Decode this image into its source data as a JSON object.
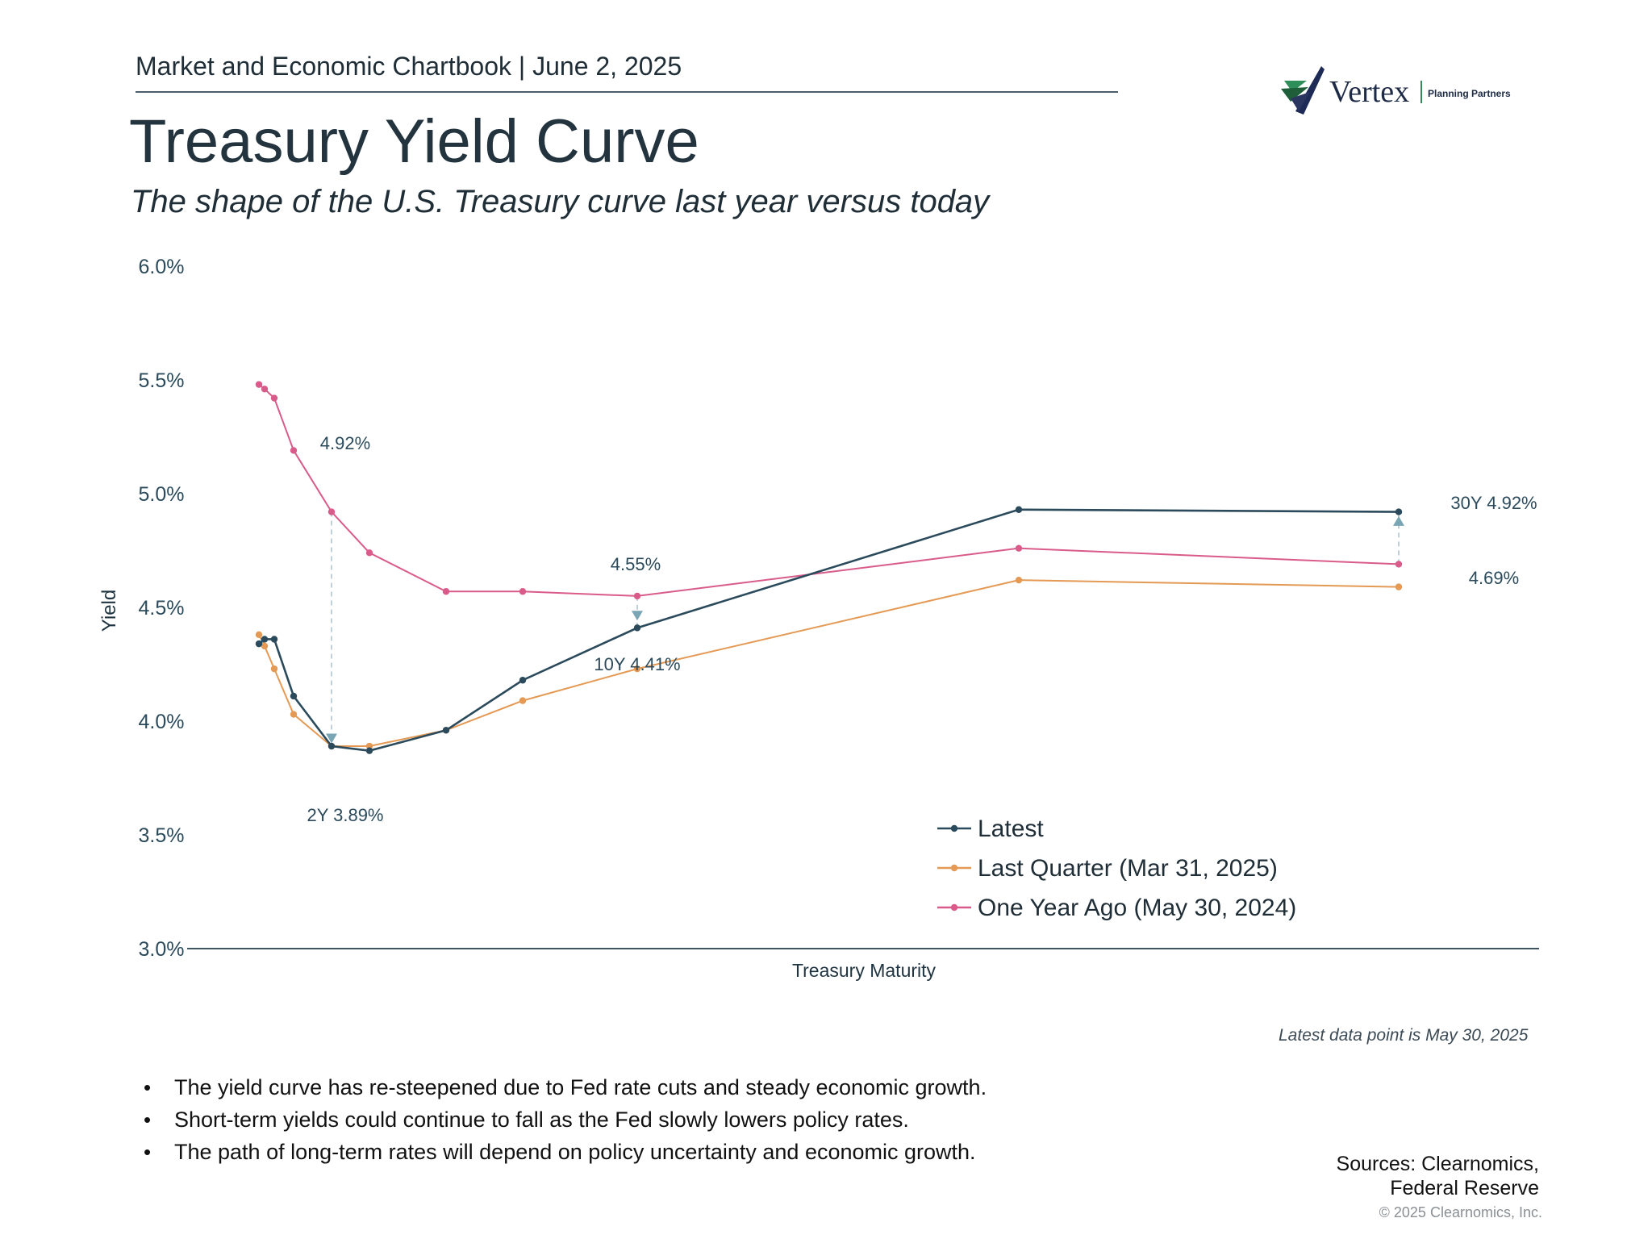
{
  "header": {
    "chartbook": "Market and Economic Chartbook | June 2, 2025",
    "title": "Treasury Yield Curve",
    "subtitle": "The shape of the U.S. Treasury curve last year versus today"
  },
  "logo": {
    "name": "Vertex",
    "tagline": "Planning Partners"
  },
  "chart_data": {
    "type": "line",
    "ylabel": "Yield",
    "xlabel": "Treasury Maturity",
    "ylim": [
      3.0,
      6.0
    ],
    "yticks": [
      "3.0%",
      "3.5%",
      "4.0%",
      "4.5%",
      "5.0%",
      "5.5%",
      "6.0%"
    ],
    "x": [
      0.083,
      0.167,
      0.25,
      0.5,
      1,
      2,
      3,
      5,
      7,
      10,
      20,
      30
    ],
    "series": [
      {
        "name": "Latest",
        "color": "#2b4a5b",
        "values": [
          4.34,
          4.36,
          4.36,
          4.11,
          3.89,
          3.87,
          3.96,
          4.18,
          4.41,
          null,
          4.93,
          4.92
        ]
      },
      {
        "name": "Last Quarter (Mar 31, 2025)",
        "color": "#e49a55",
        "values": [
          4.38,
          4.33,
          4.23,
          4.03,
          3.89,
          3.89,
          3.96,
          4.09,
          4.23,
          null,
          4.62,
          4.59
        ]
      },
      {
        "name": "One Year Ago (May 30, 2024)",
        "color": "#d95b8a",
        "values": [
          5.48,
          5.46,
          5.42,
          5.19,
          4.92,
          4.74,
          4.57,
          4.57,
          4.55,
          null,
          4.76,
          4.69
        ]
      }
    ],
    "annotations": [
      "4.92%",
      "2Y 3.89%",
      "4.55%",
      "10Y 4.41%",
      "30Y 4.92%",
      "4.69%"
    ],
    "legend_position": "bottom-right",
    "grid": false
  },
  "note": "Latest data point is May 30, 2025",
  "bullets": [
    "The yield curve has re-steepened due to Fed rate cuts and steady economic growth.",
    "Short-term yields could continue to fall as the Fed slowly lowers policy rates.",
    "The path of long-term rates will depend on policy uncertainty and economic growth."
  ],
  "sources": {
    "line1": "Sources: Clearnomics,",
    "line2": "Federal Reserve"
  },
  "copyright": "© 2025 Clearnomics, Inc."
}
